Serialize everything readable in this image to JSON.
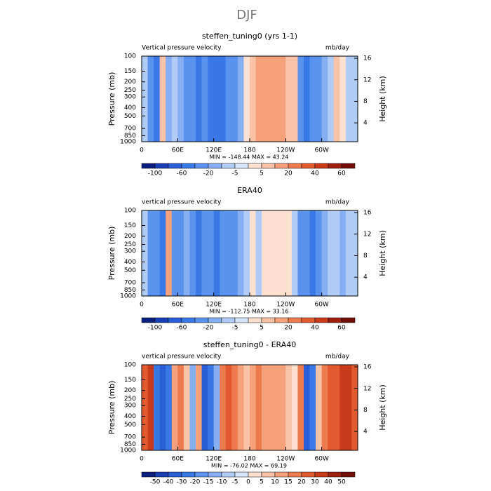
{
  "suptitle": "DJF",
  "chart_data": [
    {
      "type": "contour",
      "title": "steffen_tuning0 (yrs 1-1)",
      "left_label": "Vertical pressure velocity",
      "right_label": "mb/day",
      "stats": "MIN = -148.44   MAX =  43.24",
      "x": [
        0,
        10,
        20,
        30,
        40,
        50,
        60,
        70,
        80,
        90,
        100,
        110,
        120,
        130,
        140,
        150,
        160,
        170,
        180,
        190,
        200,
        210,
        220,
        230,
        240,
        250,
        260,
        270,
        280,
        290,
        300,
        310,
        320,
        330,
        340,
        350
      ],
      "values": [
        -5,
        -30,
        -40,
        10,
        -10,
        -5,
        -15,
        -30,
        -30,
        -40,
        -30,
        -40,
        -40,
        -40,
        -30,
        -30,
        -10,
        5,
        10,
        20,
        20,
        20,
        20,
        20,
        10,
        10,
        -20,
        -40,
        -30,
        -20,
        -10,
        -5,
        10,
        5,
        -5,
        -5
      ],
      "xlim": [
        0,
        360
      ],
      "xticks": [
        0,
        {
          "value": 60,
          "label": "60E"
        },
        {
          "value": 120,
          "label": "120E"
        },
        180,
        {
          "value": 240,
          "label": "120W"
        },
        {
          "value": 300,
          "label": "60W"
        }
      ],
      "ylabel": "Pressure (mb)",
      "ylim": [
        1000,
        100
      ],
      "y_log": true,
      "yticks": [
        100,
        150,
        200,
        250,
        300,
        400,
        500,
        700,
        850,
        1000
      ],
      "y2label": "Height (km)",
      "y2lim": [
        0.5,
        16.4
      ],
      "y2ticks": [
        4,
        8,
        12,
        16
      ],
      "colorbar": {
        "levels": [
          -100,
          -80,
          -60,
          -40,
          -20,
          -10,
          -5,
          0,
          5,
          10,
          20,
          30,
          40,
          50,
          60
        ],
        "label_step": 2,
        "colors": [
          "#0a1f80",
          "#1a3fb5",
          "#2a5fd8",
          "#3a78e6",
          "#5a92ee",
          "#86aef2",
          "#b0cbf5",
          "#d6e5f8",
          "#fbe0d0",
          "#f8c3a6",
          "#f5a27c",
          "#ee7b50",
          "#e35a30",
          "#c83a1a",
          "#a02010",
          "#701008"
        ]
      }
    },
    {
      "type": "contour",
      "title": "ERA40",
      "left_label": "vertical pressure velocity",
      "right_label": "mb/day",
      "stats": "MIN = -112.75   MAX =  33.16",
      "x": [
        0,
        10,
        20,
        30,
        40,
        50,
        60,
        70,
        80,
        90,
        100,
        110,
        120,
        130,
        140,
        150,
        160,
        170,
        180,
        190,
        200,
        210,
        220,
        230,
        240,
        250,
        260,
        270,
        280,
        290,
        300,
        310,
        320,
        330,
        340,
        350
      ],
      "values": [
        -5,
        -20,
        -30,
        -40,
        20,
        -20,
        -30,
        -10,
        -20,
        -40,
        -20,
        -30,
        -40,
        -30,
        -30,
        -20,
        -10,
        -5,
        5,
        -5,
        5,
        5,
        5,
        5,
        5,
        -5,
        -20,
        -30,
        -40,
        -20,
        -10,
        -5,
        -5,
        -10,
        -5,
        -5
      ],
      "xlim": [
        0,
        360
      ],
      "xticks": [
        0,
        {
          "value": 60,
          "label": "60E"
        },
        {
          "value": 120,
          "label": "120E"
        },
        180,
        {
          "value": 240,
          "label": "120W"
        },
        {
          "value": 300,
          "label": "60W"
        }
      ],
      "ylabel": "Pressure (mb)",
      "ylim": [
        1000,
        100
      ],
      "y_log": true,
      "yticks": [
        100,
        150,
        200,
        250,
        300,
        400,
        500,
        700,
        850,
        1000
      ],
      "y2label": "Height (km)",
      "y2lim": [
        0.5,
        16.4
      ],
      "y2ticks": [
        4,
        8,
        12,
        16
      ],
      "colorbar": {
        "levels": [
          -100,
          -80,
          -60,
          -40,
          -20,
          -10,
          -5,
          0,
          5,
          10,
          20,
          30,
          40,
          50,
          60
        ],
        "label_step": 2,
        "colors": [
          "#0a1f80",
          "#1a3fb5",
          "#2a5fd8",
          "#3a78e6",
          "#5a92ee",
          "#86aef2",
          "#b0cbf5",
          "#d6e5f8",
          "#fbe0d0",
          "#f8c3a6",
          "#f5a27c",
          "#ee7b50",
          "#e35a30",
          "#c83a1a",
          "#a02010",
          "#701008"
        ]
      }
    },
    {
      "type": "contour",
      "title": "steffen_tuning0 - ERA40",
      "left_label": "vertical pressure velocity",
      "right_label": "mb/day",
      "stats": "MIN = -76.02   MAX =  69.19",
      "x": [
        0,
        10,
        20,
        30,
        40,
        50,
        60,
        70,
        80,
        90,
        100,
        110,
        120,
        130,
        140,
        150,
        160,
        170,
        180,
        190,
        200,
        210,
        220,
        230,
        240,
        250,
        260,
        270,
        280,
        290,
        300,
        310,
        320,
        330,
        340,
        350
      ],
      "values": [
        30,
        40,
        -20,
        -30,
        -20,
        15,
        20,
        10,
        -10,
        15,
        -30,
        -20,
        -10,
        20,
        30,
        20,
        15,
        10,
        15,
        20,
        15,
        15,
        15,
        15,
        10,
        5,
        20,
        -30,
        -20,
        10,
        20,
        30,
        30,
        40,
        40,
        30
      ],
      "xlim": [
        0,
        360
      ],
      "xticks": [
        0,
        {
          "value": 60,
          "label": "60E"
        },
        {
          "value": 120,
          "label": "120E"
        },
        180,
        {
          "value": 240,
          "label": "120W"
        },
        {
          "value": 300,
          "label": "60W"
        }
      ],
      "ylabel": "Pressure (mb)",
      "ylim": [
        1000,
        100
      ],
      "y_log": true,
      "yticks": [
        100,
        150,
        200,
        250,
        300,
        400,
        500,
        700,
        850,
        1000
      ],
      "y2label": "Height (km)",
      "y2lim": [
        0.5,
        16.4
      ],
      "y2ticks": [
        4,
        8,
        12,
        16
      ],
      "colorbar": {
        "levels": [
          -50,
          -40,
          -30,
          -20,
          -15,
          -10,
          -5,
          0,
          5,
          10,
          15,
          20,
          30,
          40,
          50
        ],
        "label_step": 1,
        "colors": [
          "#0a1f80",
          "#1a3fb5",
          "#2a5fd8",
          "#3a78e6",
          "#5a92ee",
          "#86aef2",
          "#b0cbf5",
          "#d6e5f8",
          "#fbe0d0",
          "#f8c3a6",
          "#f5a27c",
          "#ee7b50",
          "#e35a30",
          "#c83a1a",
          "#a02010",
          "#701008"
        ]
      }
    }
  ]
}
